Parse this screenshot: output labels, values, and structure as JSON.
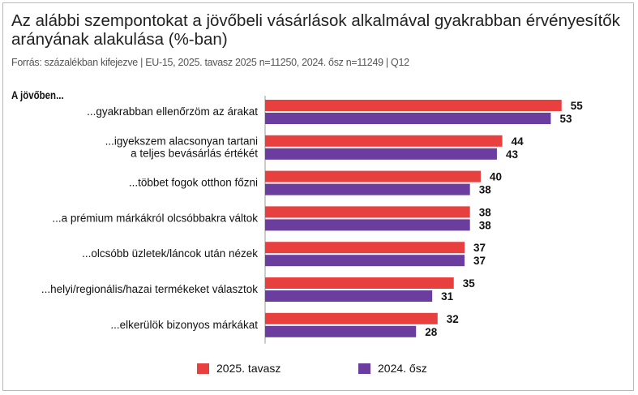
{
  "header": {
    "title": "Az alábbi szempontokat a jövőbeli vásárlások alkalmával gyakrabban érvényesítők arányának alakulása (%-ban)",
    "source": "Forrás: százalékban kifejezve | EU-15, 2025. tavasz 2025 n=11250, 2024. ősz n=11249 | Q12",
    "subhead": "A jövőben..."
  },
  "colors": {
    "series1": "#e8403f",
    "series2": "#6a3d9f"
  },
  "chart_data": {
    "type": "bar",
    "orientation": "horizontal",
    "title": "Az alábbi szempontokat a jövőbeli vásárlások alkalmával gyakrabban érvényesítők arányának alakulása (%-ban)",
    "categories": [
      [
        "...gyakrabban ellenőrzöm az árakat"
      ],
      [
        "...igyekszem alacsonyan tartani",
        "a teljes bevásárlás értékét"
      ],
      [
        "...többet fogok otthon főzni"
      ],
      [
        "...a prémium márkákról olcsóbbakra váltok"
      ],
      [
        "...olcsóbb üzletek/láncok után nézek"
      ],
      [
        "...helyi/regionális/hazai termékeket választok"
      ],
      [
        "...elkerülök bizonyos márkákat"
      ]
    ],
    "series": [
      {
        "name": "2025. tavasz",
        "values": [
          55,
          44,
          40,
          38,
          37,
          35,
          32
        ]
      },
      {
        "name": "2024. ősz",
        "values": [
          53,
          43,
          38,
          38,
          37,
          31,
          28
        ]
      }
    ],
    "xlim": [
      0,
      60
    ],
    "legend": "bottom",
    "grid": false
  }
}
